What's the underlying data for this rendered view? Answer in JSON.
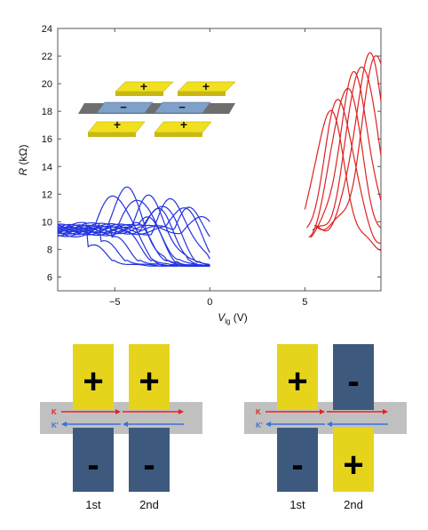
{
  "chart_data": {
    "type": "line",
    "xlabel": {
      "main": "V",
      "sub": "lg",
      "unit": " (V)"
    },
    "ylabel": {
      "main": "R",
      "unit": " (kΩ)"
    },
    "xlim": [
      -8,
      9
    ],
    "ylim": [
      5,
      24
    ],
    "xticks": [
      -5,
      0,
      5
    ],
    "xtick_labels": [
      "−5",
      "0",
      "5"
    ],
    "yticks": [
      6,
      8,
      10,
      12,
      14,
      16,
      18,
      20,
      22,
      24
    ],
    "ytick_labels": [
      "6",
      "8",
      "10",
      "12",
      "14",
      "16",
      "18",
      "20",
      "22",
      "24"
    ],
    "colors": {
      "blue_series": "#2233dd",
      "red_series": "#dd2222"
    },
    "blue_series": [
      {
        "peak_x": -5.0,
        "peak_y": 12.0
      },
      {
        "peak_x": -4.4,
        "peak_y": 12.3
      },
      {
        "peak_x": -3.8,
        "peak_y": 11.8
      },
      {
        "peak_x": -3.2,
        "peak_y": 11.7
      },
      {
        "peak_x": -2.6,
        "peak_y": 11.3
      },
      {
        "peak_x": -2.0,
        "peak_y": 11.5
      },
      {
        "peak_x": -1.5,
        "peak_y": 11.1
      },
      {
        "peak_x": -1.0,
        "peak_y": 10.9
      },
      {
        "peak_x": -0.6,
        "peak_y": 10.5
      },
      {
        "peak_x": -2.8,
        "peak_y": 10.8
      },
      {
        "peak_x": -3.4,
        "peak_y": 10.2
      },
      {
        "peak_x": -4.0,
        "peak_y": 9.8
      },
      {
        "peak_x": -4.6,
        "peak_y": 9.2
      },
      {
        "peak_x": -5.2,
        "peak_y": 8.8
      },
      {
        "peak_x": -5.8,
        "peak_y": 8.5
      },
      {
        "peak_x": -6.4,
        "peak_y": 8.2
      }
    ],
    "red_series": [
      {
        "peak_x": 6.3,
        "peak_y": 18.0
      },
      {
        "peak_x": 6.8,
        "peak_y": 18.8
      },
      {
        "peak_x": 7.2,
        "peak_y": 19.8
      },
      {
        "peak_x": 7.6,
        "peak_y": 20.6
      },
      {
        "peak_x": 8.0,
        "peak_y": 21.5
      },
      {
        "peak_x": 8.4,
        "peak_y": 22.0
      },
      {
        "peak_x": 8.8,
        "peak_y": 22.1
      }
    ]
  },
  "inset": {
    "top_signs": [
      "+",
      "+"
    ],
    "bottom_signs": [
      "+",
      "+"
    ],
    "channel_signs": [
      "−",
      "−"
    ]
  },
  "schematics": [
    {
      "gates": [
        {
          "top_sign": "+",
          "bottom_sign": "-",
          "top_color": "#e6d41c",
          "bottom_color": "#3d5a7e",
          "label": "1st"
        },
        {
          "top_sign": "+",
          "bottom_sign": "-",
          "top_color": "#e6d41c",
          "bottom_color": "#3d5a7e",
          "label": "2nd"
        }
      ],
      "k_label": "K",
      "kp_label": "K'"
    },
    {
      "gates": [
        {
          "top_sign": "+",
          "bottom_sign": "-",
          "top_color": "#e6d41c",
          "bottom_color": "#3d5a7e",
          "label": "1st"
        },
        {
          "top_sign": "-",
          "bottom_sign": "+",
          "top_color": "#3d5a7e",
          "bottom_color": "#e6d41c",
          "label": "2nd"
        }
      ],
      "k_label": "K",
      "kp_label": "K'"
    }
  ],
  "colors": {
    "yellow": "#e6d41c",
    "navy": "#3d5a7e",
    "channel": "#c0c0c0",
    "k_arrow": "#e52222",
    "kp_arrow": "#3b6fd8"
  }
}
